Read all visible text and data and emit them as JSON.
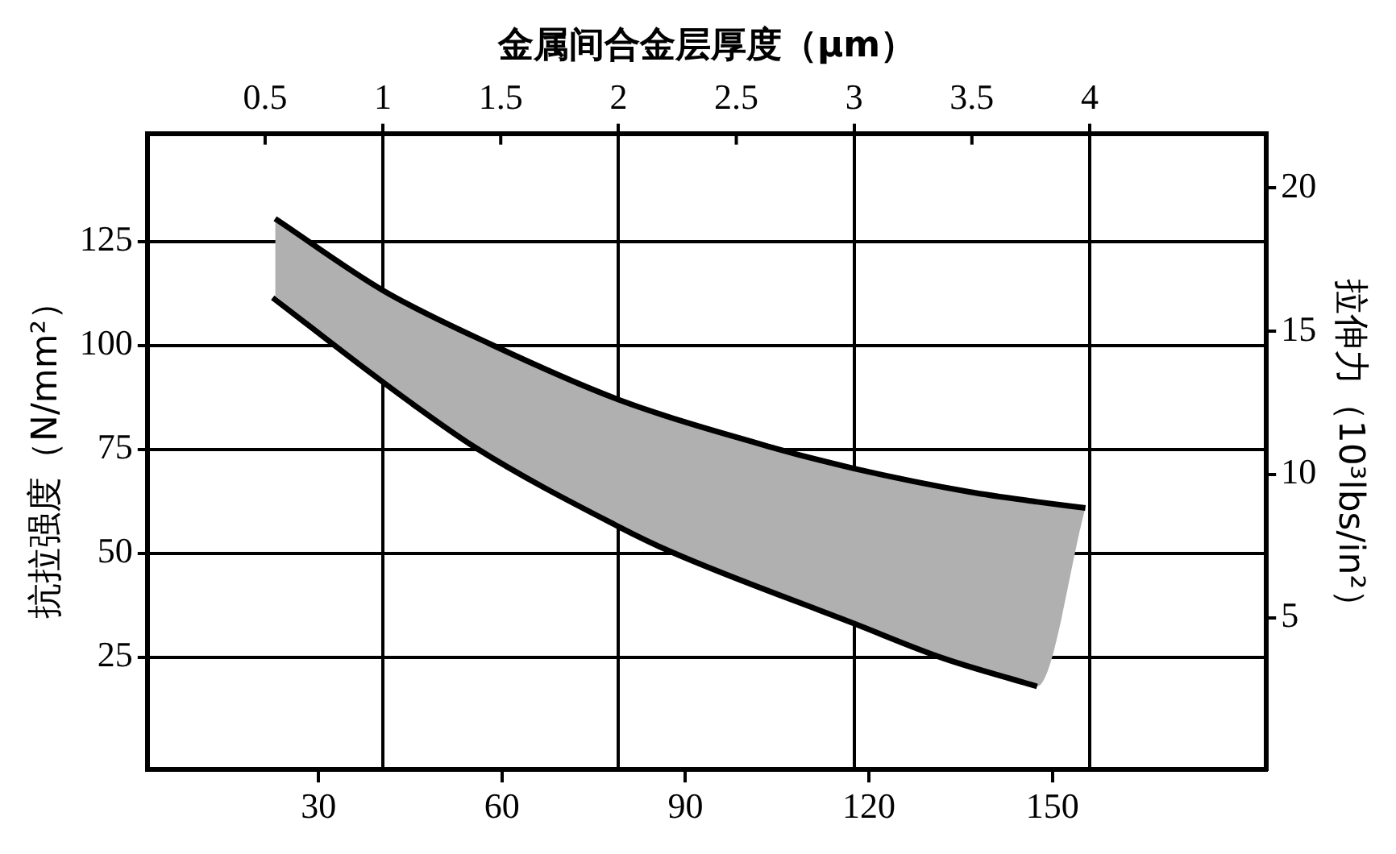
{
  "chart_data": {
    "type": "line",
    "x2label": "金属间合金层厚度（μm）",
    "ylabel": "抗拉强度（N/mm²）",
    "y2label": "拉伸力（10³lbs/in²）",
    "xlim": [
      2,
      185
    ],
    "xticks": [
      30,
      60,
      90,
      120,
      150
    ],
    "x2lim": [
      0,
      4.75
    ],
    "x2ticks": [
      0.5,
      1,
      1.5,
      2,
      2.5,
      3,
      3.5,
      4
    ],
    "ylim": [
      -2,
      151
    ],
    "yticks": [
      25,
      50,
      75,
      100,
      125
    ],
    "y2lim": [
      -0.3,
      21.9
    ],
    "y2ticks": [
      5,
      10,
      15,
      20
    ],
    "grid": true,
    "legend": false,
    "marker": "none",
    "line_style": "solid",
    "series": [
      {
        "color": "#000000",
        "x": [
          22.9,
          40.7,
          58,
          79.2,
          104.6,
          117.6,
          136.4,
          147.5,
          155.4
        ],
        "values": [
          130.5,
          113.1,
          100.4,
          86.9,
          75.3,
          70.4,
          64.8,
          62.4,
          60.9
        ],
        "upper": [
          130.5,
          113.1,
          100.4,
          86.9,
          75.3,
          70.4,
          64.8,
          62.4,
          60.9
        ],
        "lower": [
          112,
          91.1,
          73.5,
          56.4,
          40.6,
          33.1,
          22.7,
          18,
          60.9
        ]
      },
      {
        "color": "#000000",
        "x": [
          22.5,
          40.6,
          55.8,
          79.1,
          87.6,
          117.6,
          132.1,
          147.5
        ],
        "values": [
          111.5,
          91.1,
          75.3,
          56.4,
          50.4,
          33.1,
          24.8,
          18
        ]
      }
    ]
  }
}
